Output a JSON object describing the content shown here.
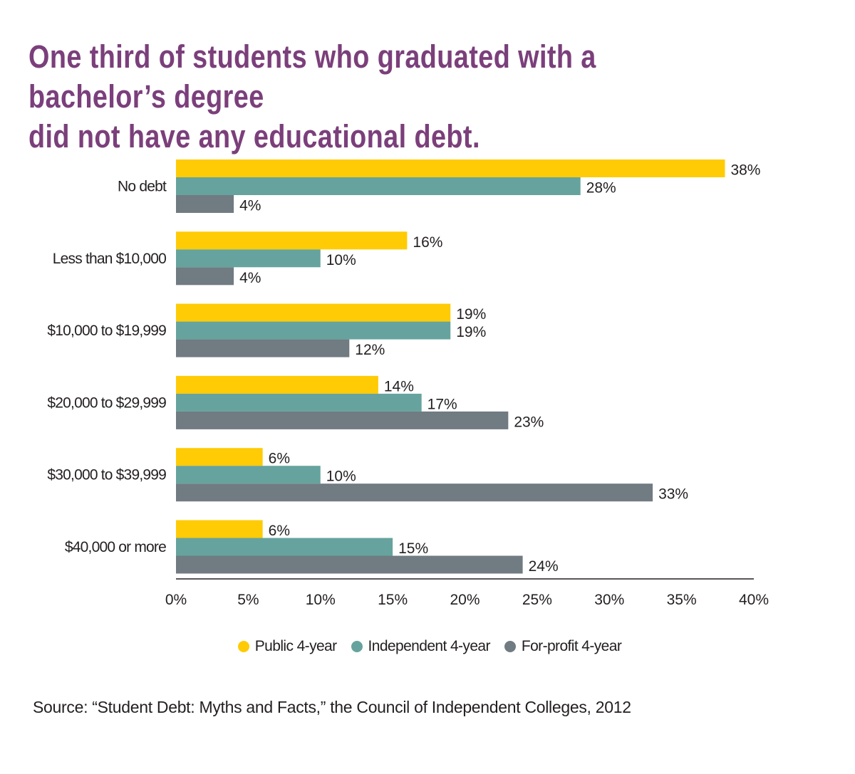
{
  "title": "One third of students who graduated with a bachelor’s degree\ndid not have any educational debt.",
  "source": "Source: “Student Debt: Myths and Facts,” the Council of Independent Colleges, 2012",
  "chart_data": {
    "type": "bar",
    "orientation": "horizontal",
    "title": "One third of students who graduated with a bachelor’s degree did not have any educational debt.",
    "categories": [
      "No debt",
      "Less than $10,000",
      "$10,000 to $19,999",
      "$20,000 to $29,999",
      "$30,000 to $39,999",
      "$40,000 or more"
    ],
    "series": [
      {
        "name": "Public 4-year",
        "color": "#ffcb05",
        "values": [
          38,
          16,
          19,
          14,
          6,
          6
        ]
      },
      {
        "name": "Independent 4-year",
        "color": "#66a39e",
        "values": [
          28,
          10,
          19,
          17,
          10,
          15
        ]
      },
      {
        "name": "For-profit 4-year",
        "color": "#707b82",
        "values": [
          4,
          4,
          12,
          23,
          33,
          24
        ]
      }
    ],
    "xlim": [
      0,
      40
    ],
    "xticks": [
      0,
      5,
      10,
      15,
      20,
      25,
      30,
      35,
      40
    ],
    "tick_labels": [
      "0%",
      "5%",
      "10%",
      "15%",
      "20%",
      "25%",
      "30%",
      "35%",
      "40%"
    ],
    "value_suffix": "%",
    "xlabel": "",
    "ylabel": "",
    "grid": false,
    "legend_position": "bottom-center"
  }
}
